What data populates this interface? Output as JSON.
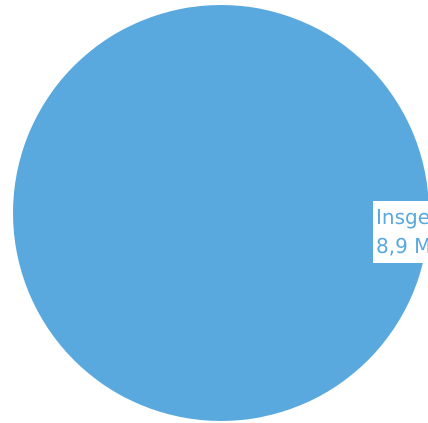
{
  "chart_data": {
    "type": "pie",
    "series": [
      {
        "values": [
          8.9
        ],
        "color": "#59a9df"
      }
    ],
    "labels": [
      {
        "line1": "Insge",
        "line2": "8,9 M"
      }
    ],
    "label_color": "#59a9df",
    "title": "",
    "legend": false
  }
}
